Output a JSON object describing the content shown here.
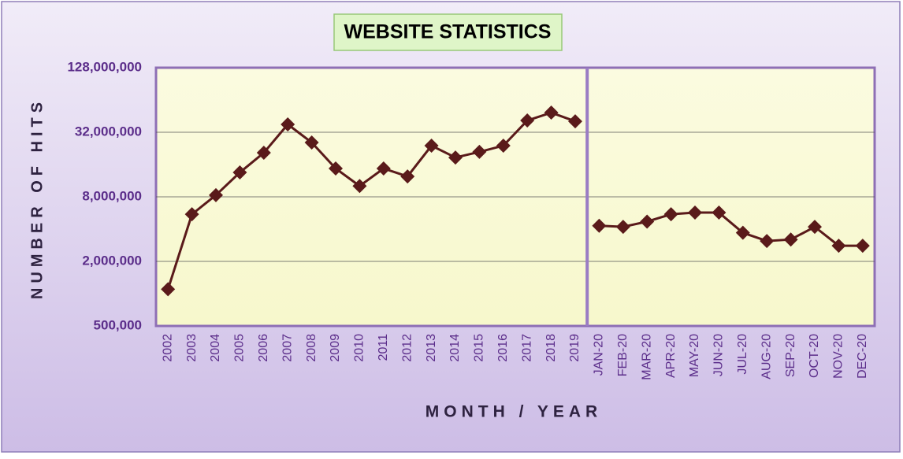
{
  "chart_data": {
    "type": "line",
    "title": "WEBSITE STATISTICS",
    "x_label": "MONTH / YEAR",
    "y_label": "NUMBER OF HITS",
    "categories": [
      "2002",
      "2003",
      "2004",
      "2005",
      "2006",
      "2007",
      "2008",
      "2009",
      "2010",
      "2011",
      "2012",
      "2013",
      "2014",
      "2015",
      "2016",
      "2017",
      "2018",
      "2019",
      "JAN-20",
      "FEB-20",
      "MAR-20",
      "APR-20",
      "MAY-20",
      "JUN-20",
      "JUL-20",
      "AUG-20",
      "SEP-20",
      "OCT-20",
      "NOV-20",
      "DEC-20"
    ],
    "series": [
      {
        "color": "#5a1a1a",
        "values": [
          1100000,
          5500000,
          8300000,
          13500000,
          20600000,
          37900000,
          25700000,
          14700000,
          10100000,
          14700000,
          12400000,
          24000000,
          18600000,
          21000000,
          24000000,
          41200000,
          48800000,
          40500000,
          null,
          null,
          null,
          null,
          null,
          null,
          null,
          null,
          null,
          null,
          null,
          null
        ]
      },
      {
        "color": "#5a1a1a",
        "values": [
          null,
          null,
          null,
          null,
          null,
          null,
          null,
          null,
          null,
          null,
          null,
          null,
          null,
          null,
          null,
          null,
          null,
          null,
          4300000,
          4200000,
          4700000,
          5500000,
          5700000,
          5700000,
          3700000,
          3100000,
          3200000,
          4200000,
          2800000,
          2800000
        ]
      }
    ],
    "log_scale": true,
    "ylim": [
      500000,
      128000000
    ],
    "yticks": [
      {
        "value": 500000,
        "label": "500,000"
      },
      {
        "value": 2000000,
        "label": "2,000,000"
      },
      {
        "value": 8000000,
        "label": "8,000,000"
      },
      {
        "value": 32000000,
        "label": "32,000,000"
      },
      {
        "value": 128000000,
        "label": "128,000,000"
      }
    ],
    "grid": true
  }
}
